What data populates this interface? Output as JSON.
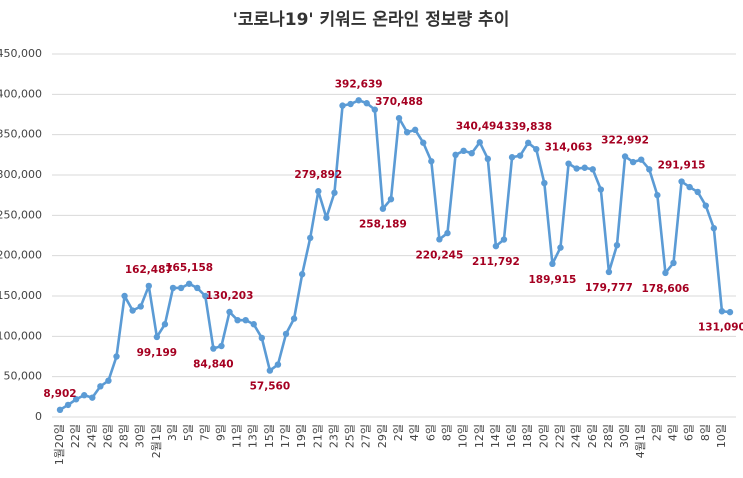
{
  "chart_data": {
    "type": "line",
    "title": "'코로나19' 키워드 온라인 정보량 추이",
    "categories": [
      "1월20일",
      null,
      "22일",
      null,
      "24일",
      null,
      "26일",
      null,
      "28일",
      null,
      "30일",
      null,
      "2월1일",
      null,
      "3일",
      null,
      "5일",
      null,
      "7일",
      null,
      "9일",
      null,
      "11일",
      null,
      "13일",
      null,
      "15일",
      null,
      "17일",
      null,
      "19일",
      null,
      "21일",
      null,
      "23일",
      null,
      "25일",
      null,
      "27일",
      null,
      "29일",
      null,
      "2일",
      null,
      "4일",
      null,
      "6일",
      null,
      "8일",
      null,
      "10일",
      null,
      "12일",
      null,
      "14일",
      null,
      "16일",
      null,
      "18일",
      null,
      "20일",
      null,
      "22일",
      null,
      "24일",
      null,
      "26일",
      null,
      "28일",
      null,
      "30일",
      null,
      "4월1일",
      null,
      "2일",
      null,
      "4일",
      null,
      "6일",
      null,
      "8일",
      null,
      "10일",
      null
    ],
    "series": [
      {
        "name": "정보량",
        "color": "#5b9bd5",
        "values": [
          8902,
          15000,
          22000,
          27000,
          24000,
          38000,
          45000,
          75000,
          150000,
          132000,
          137000,
          162487,
          99199,
          115000,
          160000,
          160000,
          165158,
          160000,
          150000,
          84840,
          88000,
          130203,
          120000,
          120000,
          115000,
          98000,
          57560,
          65000,
          103000,
          122000,
          177000,
          222000,
          279892,
          247000,
          278000,
          386000,
          388000,
          392639,
          389000,
          381000,
          258189,
          270000,
          370488,
          353000,
          356000,
          340000,
          317000,
          220245,
          228000,
          325000,
          330000,
          327000,
          340494,
          320000,
          211792,
          220000,
          322000,
          324000,
          339838,
          332000,
          290000,
          189915,
          210000,
          314063,
          308000,
          309000,
          307000,
          282000,
          179777,
          213000,
          322992,
          316000,
          319000,
          307000,
          275000,
          178606,
          191000,
          291915,
          285000,
          279000,
          262000,
          234000,
          131090,
          130000
        ],
        "value_labels": [
          "8,902",
          null,
          null,
          null,
          null,
          null,
          null,
          null,
          null,
          null,
          null,
          "162,487",
          "99,199",
          null,
          null,
          null,
          "165,158",
          null,
          null,
          "84,840",
          null,
          "130,203",
          null,
          null,
          null,
          null,
          "57,560",
          null,
          null,
          null,
          null,
          null,
          "279,892",
          null,
          null,
          null,
          null,
          "392,639",
          null,
          null,
          "258,189",
          null,
          "370,488",
          null,
          null,
          null,
          null,
          "220,245",
          null,
          null,
          null,
          null,
          "340,494",
          null,
          "211,792",
          null,
          null,
          null,
          "339,838",
          null,
          null,
          "189,915",
          null,
          "314,063",
          null,
          null,
          null,
          null,
          "179,777",
          null,
          "322,992",
          null,
          null,
          null,
          null,
          "178,606",
          null,
          "291,915",
          null,
          null,
          null,
          null,
          "131,090",
          null
        ]
      }
    ],
    "label_color": "#a50021",
    "ylim": [
      0,
      450000
    ],
    "yticks": [
      0,
      {
        "value": 50000,
        "label": "50,000"
      },
      {
        "value": 100000,
        "label": "100,000"
      },
      {
        "value": 150000,
        "label": "150,000"
      },
      {
        "value": 200000,
        "label": "200,000"
      },
      {
        "value": 250000,
        "label": "250,000"
      },
      {
        "value": 300000,
        "label": "300,000"
      },
      {
        "value": 350000,
        "label": "350,000"
      },
      {
        "value": 400000,
        "label": "400,000"
      },
      {
        "value": 450000,
        "label": "450,000"
      }
    ],
    "grid": true
  }
}
